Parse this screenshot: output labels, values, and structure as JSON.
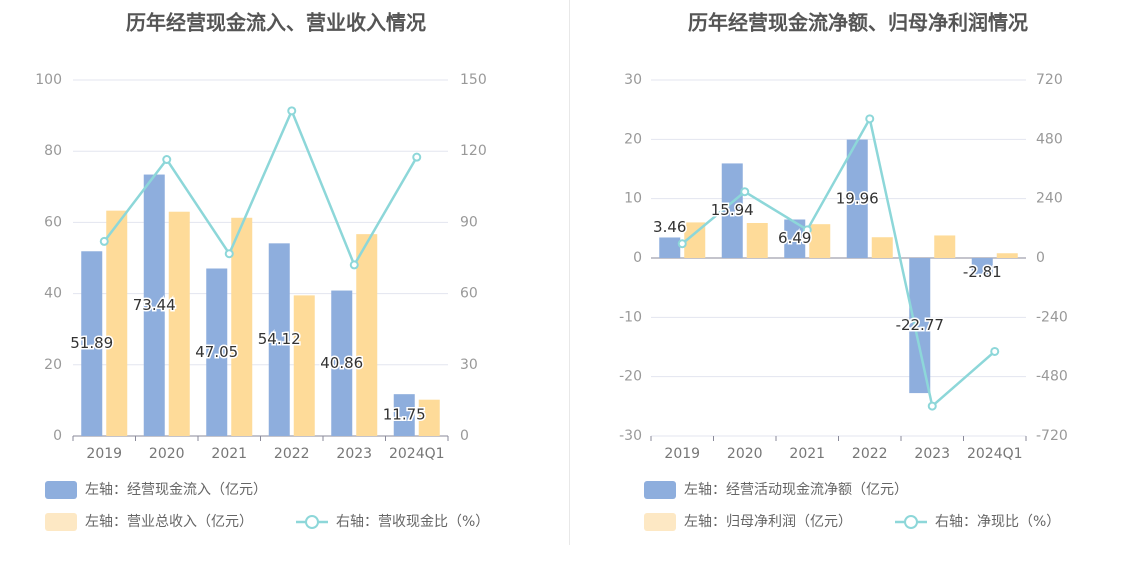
{
  "chart_data": [
    {
      "type": "bar",
      "title": "历年经营现金流入、营业收入情况",
      "categories": [
        "2019",
        "2020",
        "2021",
        "2022",
        "2023",
        "2024Q1"
      ],
      "ylim_left": [
        0,
        100
      ],
      "yticks_left": [
        "0",
        "20",
        "40",
        "60",
        "80",
        "100"
      ],
      "ylim_right": [
        0,
        150
      ],
      "yticks_right": [
        "0",
        "30",
        "60",
        "90",
        "120",
        "150"
      ],
      "grid": true,
      "series": [
        {
          "name": "左轴：经营现金流入（亿元）",
          "kind": "bar",
          "axis": "left",
          "color": "#8eaedd",
          "values": [
            51.89,
            73.44,
            47.05,
            54.12,
            40.86,
            11.75
          ],
          "labels": [
            "51.89",
            "73.44",
            "47.05",
            "54.12",
            "40.86",
            "11.75"
          ]
        },
        {
          "name": "左轴：营业总收入（亿元）",
          "kind": "bar",
          "axis": "left",
          "color": "#fedb99",
          "legend_color": "#fde8c4",
          "values": [
            63.3,
            63.0,
            61.3,
            39.5,
            56.7,
            10.2
          ]
        },
        {
          "name": "右轴：营收现金比（%）",
          "kind": "line",
          "axis": "right",
          "color": "#8dd7d9",
          "values": [
            82.0,
            116.5,
            76.8,
            137.0,
            72.1,
            117.5
          ]
        }
      ]
    },
    {
      "type": "bar",
      "title": "历年经营现金流净额、归母净利润情况",
      "categories": [
        "2019",
        "2020",
        "2021",
        "2022",
        "2023",
        "2024Q1"
      ],
      "ylim_left": [
        -30,
        30
      ],
      "yticks_left": [
        "-30",
        "-20",
        "-10",
        "0",
        "10",
        "20",
        "30"
      ],
      "ylim_right": [
        -720,
        720
      ],
      "yticks_right": [
        "-720",
        "-480",
        "-240",
        "0",
        "240",
        "480",
        "720"
      ],
      "grid": true,
      "series": [
        {
          "name": "左轴：经营活动现金流净额（亿元）",
          "kind": "bar",
          "axis": "left",
          "color": "#8eaedd",
          "values": [
            3.46,
            15.94,
            6.49,
            19.96,
            -22.77,
            -2.81
          ],
          "labels": [
            "3.46",
            "15.94",
            "6.49",
            "19.96",
            "-22.77",
            "-2.81"
          ]
        },
        {
          "name": "左轴：归母净利润（亿元）",
          "kind": "bar",
          "axis": "left",
          "color": "#fedb99",
          "legend_color": "#fde8c4",
          "values": [
            6.0,
            5.9,
            5.7,
            3.5,
            3.8,
            0.8
          ]
        },
        {
          "name": "右轴：净现比（%）",
          "kind": "line",
          "axis": "right",
          "color": "#8dd7d9",
          "values": [
            57.7,
            268.0,
            114.0,
            563.0,
            -599.0,
            -378.0
          ]
        }
      ]
    }
  ]
}
